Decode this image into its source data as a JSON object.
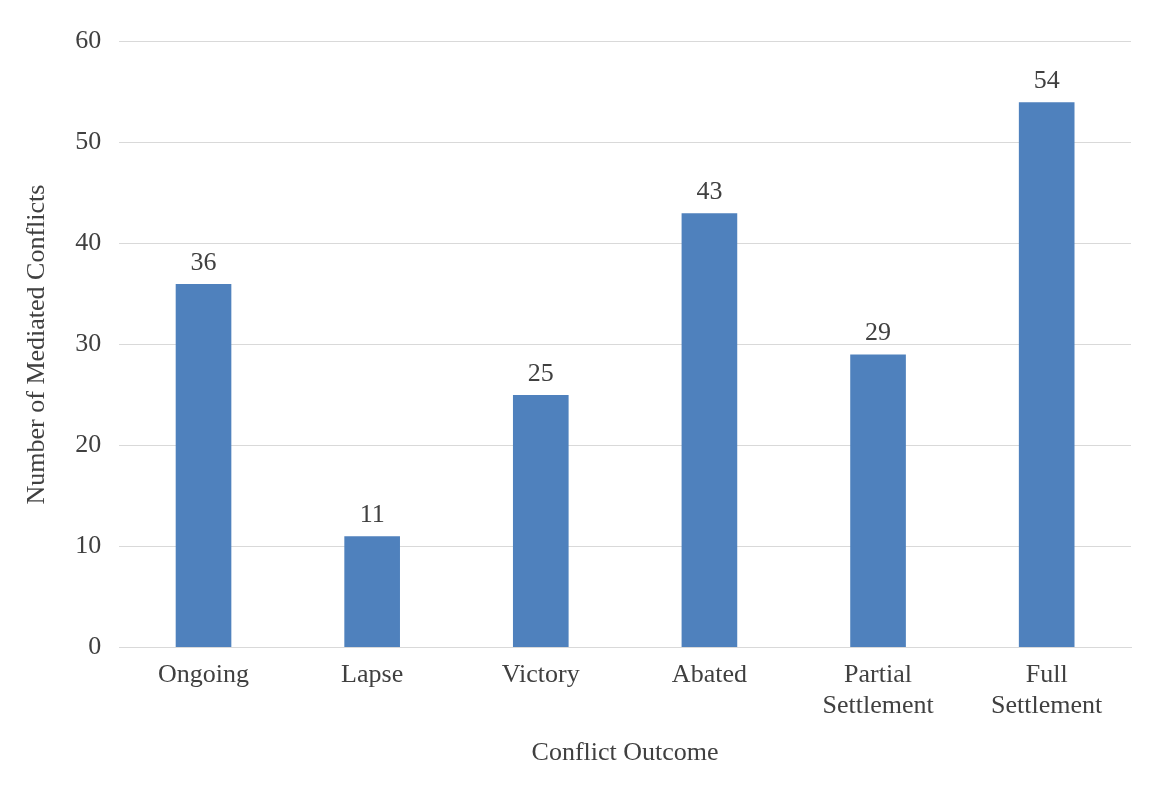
{
  "chart_data": {
    "type": "bar",
    "xlabel": "Conflict Outcome",
    "ylabel": "Number of Mediated Conflicts",
    "categories": [
      "Ongoing",
      "Lapse",
      "Victory",
      "Abated",
      "Partial Settlement",
      "Full Settlement"
    ],
    "values": [
      36,
      11,
      25,
      43,
      29,
      54
    ],
    "color": "#4f81bd",
    "ylim": [
      0,
      60
    ],
    "yticks": [
      0,
      10,
      20,
      30,
      40,
      50,
      60
    ],
    "grid": "y",
    "data_labels": true
  }
}
